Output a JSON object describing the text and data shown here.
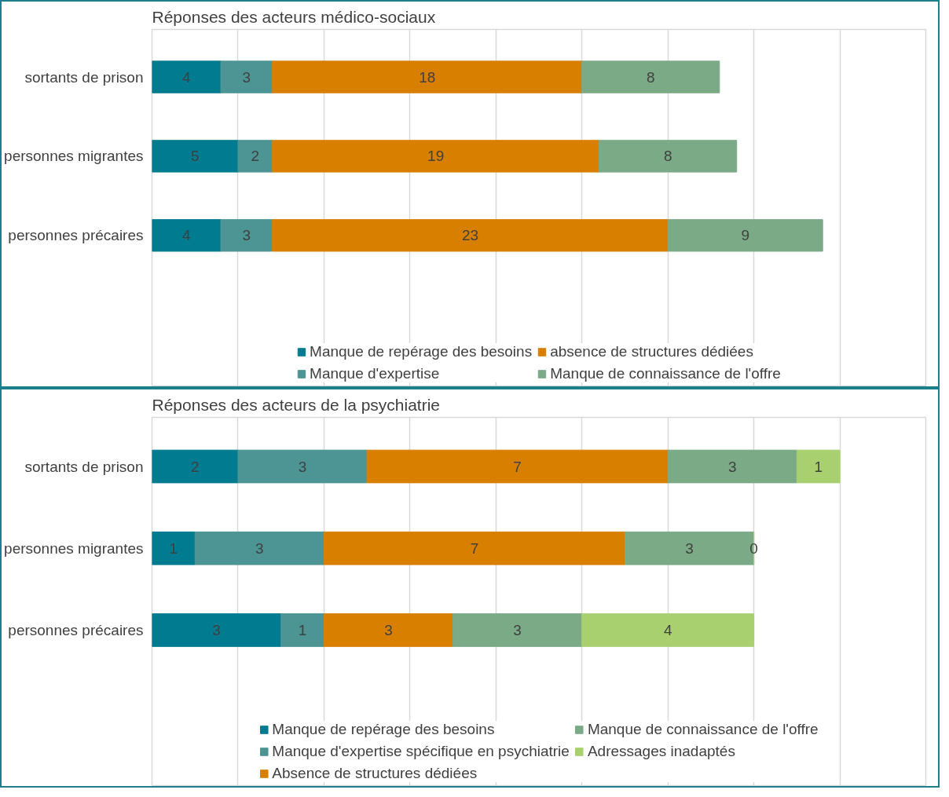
{
  "chart_data": [
    {
      "type": "bar",
      "orientation": "horizontal",
      "stacked": true,
      "title": "Réponses des acteurs médico-sociaux",
      "categories": [
        "sortants de prison",
        "personnes migrantes",
        "personnes précaires"
      ],
      "series": [
        {
          "name": "Manque de repérage des besoins",
          "color": "#007b8f",
          "values": [
            4,
            5,
            4
          ]
        },
        {
          "name": "Manque d'expertise",
          "color": "#4d9494",
          "values": [
            3,
            2,
            3
          ]
        },
        {
          "name": "absence de structures dédiées",
          "color": "#d97f00",
          "values": [
            18,
            19,
            23
          ]
        },
        {
          "name": "Manque de connaissance de l'offre",
          "color": "#7aaa86",
          "values": [
            8,
            8,
            9
          ]
        }
      ],
      "xlim": [
        0,
        45
      ],
      "xticks": [
        {
          "value": 0,
          "label": null
        },
        {
          "value": 5,
          "label": null
        },
        {
          "value": 10,
          "label": null
        },
        {
          "value": 15,
          "label": null
        },
        {
          "value": 20,
          "label": null
        },
        {
          "value": 25,
          "label": null
        },
        {
          "value": 30,
          "label": null
        },
        {
          "value": 35,
          "label": null
        },
        {
          "value": 40,
          "label": null
        },
        {
          "value": 45,
          "label": null
        }
      ],
      "tick_labels": "y",
      "grid": "x",
      "legend": "bottom",
      "data_labels": true
    },
    {
      "type": "bar",
      "orientation": "horizontal",
      "stacked": true,
      "title": "Réponses des acteurs de la psychiatrie",
      "categories": [
        "sortants de prison",
        "personnes migrantes",
        "personnes précaires"
      ],
      "series": [
        {
          "name": "Manque de repérage des besoins",
          "color": "#007b8f",
          "values": [
            2,
            1,
            3
          ]
        },
        {
          "name": "Manque d'expertise spécifique en psychiatrie",
          "color": "#4d9494",
          "values": [
            3,
            3,
            1
          ]
        },
        {
          "name": "Absence de structures dédiées",
          "color": "#d97f00",
          "values": [
            7,
            7,
            3
          ]
        },
        {
          "name": "Manque de connaissance de l'offre",
          "color": "#7aaa86",
          "values": [
            3,
            3,
            3
          ]
        },
        {
          "name": "Adressages inadaptés",
          "color": "#a9d06f",
          "values": [
            1,
            0,
            4
          ]
        }
      ],
      "xlim": [
        0,
        18
      ],
      "xticks": [
        {
          "value": 0,
          "label": null
        },
        {
          "value": 2,
          "label": null
        },
        {
          "value": 4,
          "label": null
        },
        {
          "value": 6,
          "label": null
        },
        {
          "value": 8,
          "label": null
        },
        {
          "value": 10,
          "label": null
        },
        {
          "value": 12,
          "label": null
        },
        {
          "value": 14,
          "label": null
        },
        {
          "value": 16,
          "label": null
        },
        {
          "value": 18,
          "label": null
        }
      ],
      "tick_labels": "y",
      "grid": "x",
      "legend": "bottom",
      "data_labels": true
    }
  ]
}
